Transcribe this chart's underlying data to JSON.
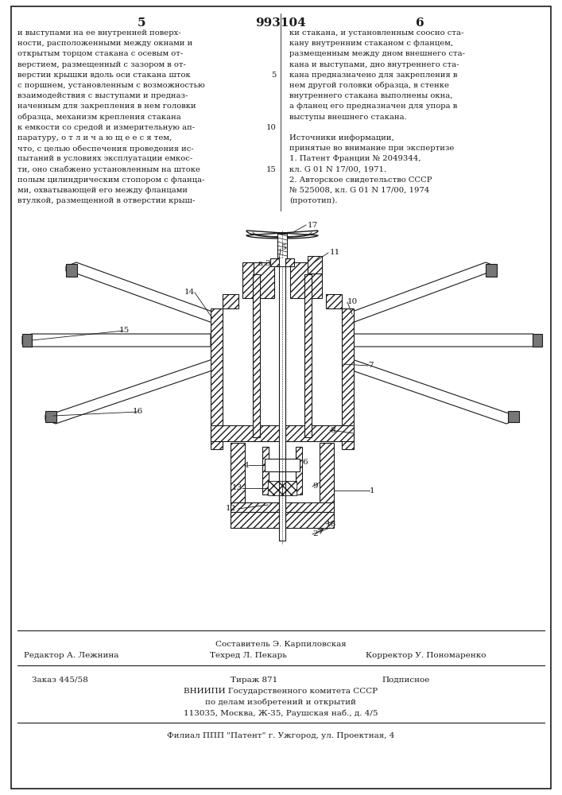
{
  "title_number": "993104",
  "page_left": "5",
  "page_right": "6",
  "text_left_col": [
    "и выступами на ее внутренней поверх-",
    "ности, расположенными между окнами и",
    "открытым торцом стакана с осевым от-",
    "верстием, размещенный с зазором в от-",
    "верстии крышки вдоль оси стакана шток",
    "с поршнем, установленным с возможностью",
    "взаимодействия с выступами и предназ-",
    "наченным для закрепления в нем головки",
    "образца, механизм крепления стакана",
    "к емкости со средой и измерительную ап-",
    "паратуру, о т л и ч а ю щ е е с я тем,",
    "что, с целью обеспечения проведения ис-",
    "пытаний в условиях эксплуатации емкос-",
    "ти, оно снабжено установленным на штоке",
    "полым цилиндрическим стопором с фланца-",
    "ми, охватывающей его между фланцами",
    "втулкой, размещенной в отверстии крыш-"
  ],
  "text_right_col": [
    "ки стакана, и установленным соосно ста-",
    "кану внутренним стаканом с фланцем,",
    "размещенным между дном внешнего ста-",
    "кана и выступами, дно внутреннего ста-",
    "кана предназначено для закрепления в",
    "нем другой головки образца, в стенке",
    "внутреннего стакана выполнены окна,",
    "а фланец его предназначен для упора в",
    "выступы внешнего стакана.",
    "",
    "Источники информации,",
    "принятые во внимание при экспертизе",
    "1. Патент Франции № 2049344,",
    "кл. G 01 N 17/00, 1971.",
    "2. Авторское свидетельство СССР",
    "№ 525008, кл. G 01 N 17/00, 1974",
    "(прототип)."
  ],
  "footer_composer": "Составитель Э. Карпиловская",
  "footer_editor": "Редактор А. Лежнина",
  "footer_techred": "Техред Л. Пекарь",
  "footer_corrector": "Корректор У. Пономаренко",
  "footer_order": "Заказ 445/58",
  "footer_tirazh": "Тираж 871",
  "footer_podpisnoe": "Подписное",
  "footer_vniip1": "ВНИИПИ Государственного комитета СССР",
  "footer_vniip2": "по делам изобретений и открытий",
  "footer_vniip3": "113035, Москва, Ж-35, Раушская наб., д. 4/5",
  "footer_filial": "Филиал ППП \"Патент\" г. Ужгород, ул. Проектная, 4",
  "bg_color": "#ffffff",
  "text_color": "#1a1a1a",
  "drawing_color": "#1a1a1a"
}
